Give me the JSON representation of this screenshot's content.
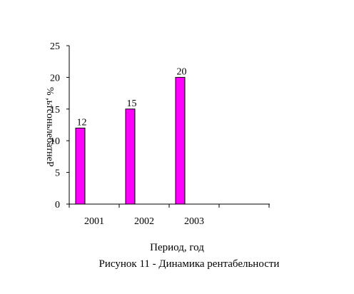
{
  "chart_data": {
    "type": "bar",
    "categories": [
      "2001",
      "2002",
      "2003"
    ],
    "values": [
      12,
      15,
      20
    ],
    "ylabel": "Рентабельность, %",
    "xlabel": "Период, год",
    "caption": "Рисунок 11 - Динамика рентабельности",
    "ylim": [
      0,
      25
    ],
    "yticks": [
      0,
      5,
      10,
      15,
      20,
      25
    ],
    "colors": {
      "bar_fill": "#FF00FF",
      "bar_stroke": "#000000",
      "axis": "#000000"
    },
    "grid": false,
    "legend": "none"
  }
}
